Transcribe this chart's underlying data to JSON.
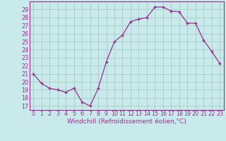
{
  "x": [
    0,
    1,
    2,
    3,
    4,
    5,
    6,
    7,
    8,
    9,
    10,
    11,
    12,
    13,
    14,
    15,
    16,
    17,
    18,
    19,
    20,
    21,
    22,
    23
  ],
  "y": [
    21.0,
    19.8,
    19.2,
    19.0,
    18.7,
    19.2,
    17.5,
    17.0,
    19.2,
    22.5,
    25.0,
    25.8,
    27.5,
    27.8,
    28.0,
    29.3,
    29.3,
    28.8,
    28.7,
    27.3,
    27.3,
    25.2,
    23.8,
    22.3
  ],
  "line_color": "#9b2d8e",
  "marker": "+",
  "bg_color": "#c8eaea",
  "grid_color": "#aacfcf",
  "ylabel_ticks": [
    17,
    18,
    19,
    20,
    21,
    22,
    23,
    24,
    25,
    26,
    27,
    28,
    29
  ],
  "xlabel": "Windchill (Refroidissement éolien,°C)",
  "ylim": [
    16.5,
    30.0
  ],
  "xlim": [
    -0.5,
    23.5
  ],
  "xlabel_fontsize": 6.5,
  "tick_fontsize": 5.8
}
